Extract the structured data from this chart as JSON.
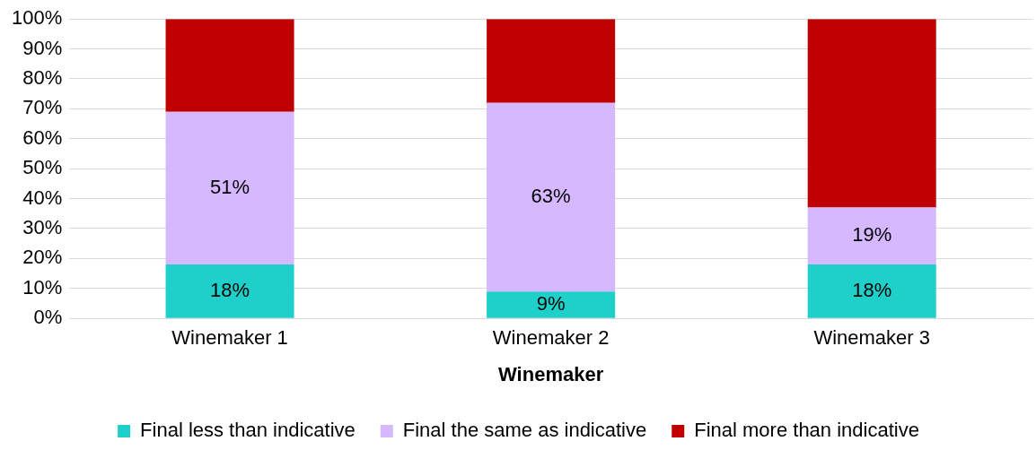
{
  "chart_data": {
    "type": "bar",
    "stacked": true,
    "xlabel": "Winemaker",
    "categories": [
      "Winemaker 1",
      "Winemaker 2",
      "Winemaker 3"
    ],
    "series": [
      {
        "name": "Final less than indicative",
        "color": "#1fcfc9",
        "values": [
          18,
          9,
          18
        ],
        "value_labels": [
          "18%",
          "9%",
          "18%"
        ]
      },
      {
        "name": "Final the same as indicative",
        "color": "#d5b8ff",
        "values": [
          51,
          63,
          19
        ],
        "value_labels": [
          "51%",
          "63%",
          "19%"
        ]
      },
      {
        "name": "Final more than indicative",
        "color": "#c00000",
        "values": [
          31,
          28,
          63
        ]
      }
    ],
    "ylim": [
      0,
      100
    ],
    "yticks": [
      {
        "value": 0,
        "label": "0%"
      },
      {
        "value": 10,
        "label": "10%"
      },
      {
        "value": 20,
        "label": "20%"
      },
      {
        "value": 30,
        "label": "30%"
      },
      {
        "value": 40,
        "label": "40%"
      },
      {
        "value": 50,
        "label": "50%"
      },
      {
        "value": 60,
        "label": "60%"
      },
      {
        "value": 70,
        "label": "70%"
      },
      {
        "value": 80,
        "label": "80%"
      },
      {
        "value": 90,
        "label": "90%"
      },
      {
        "value": 100,
        "label": "100%"
      }
    ],
    "grid": "y",
    "legend": "bottom"
  }
}
